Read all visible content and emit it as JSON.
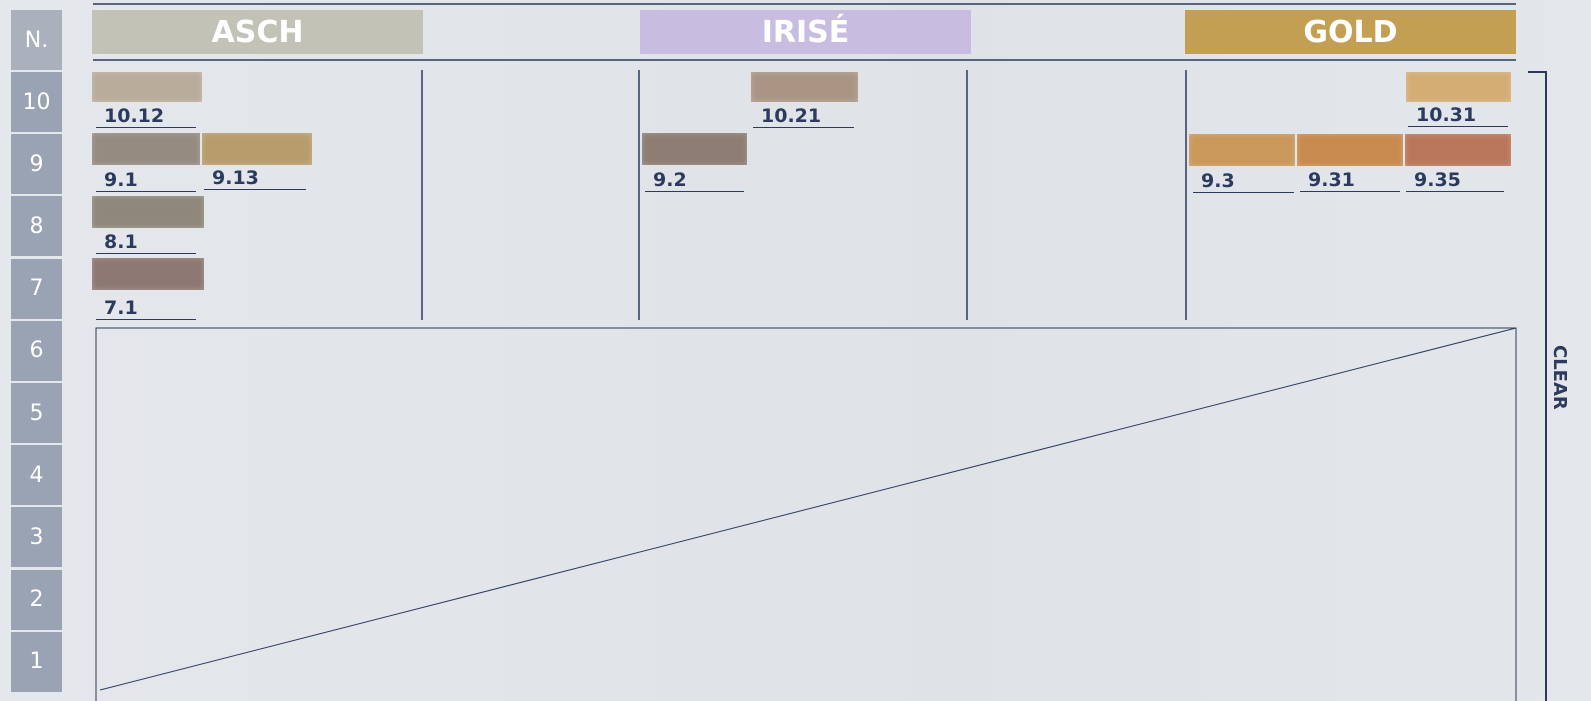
{
  "level_header": "N.",
  "levels": [
    "10",
    "9",
    "8",
    "7",
    "6",
    "5",
    "4",
    "3",
    "2",
    "1"
  ],
  "families": [
    {
      "name": "ASCH",
      "color": "#c2c2b6"
    },
    {
      "name": "IRISÉ",
      "color": "#c8bde1"
    },
    {
      "name": "GOLD",
      "color": "#c29f52"
    }
  ],
  "swatches": [
    {
      "label": "10.12",
      "color": "#b9ac9b"
    },
    {
      "label": "9.1",
      "color": "#958b81"
    },
    {
      "label": "9.13",
      "color": "#b89c6c"
    },
    {
      "label": "8.1",
      "color": "#8f877b"
    },
    {
      "label": "7.1",
      "color": "#8d7873"
    },
    {
      "label": "10.21",
      "color": "#aa9585"
    },
    {
      "label": "9.2",
      "color": "#8d7d73"
    },
    {
      "label": "10.31",
      "color": "#d3ad74"
    },
    {
      "label": "9.3",
      "color": "#c9985a"
    },
    {
      "label": "9.31",
      "color": "#c88a4e"
    },
    {
      "label": "9.35",
      "color": "#b9765a"
    }
  ],
  "side_label": "CLEAR"
}
